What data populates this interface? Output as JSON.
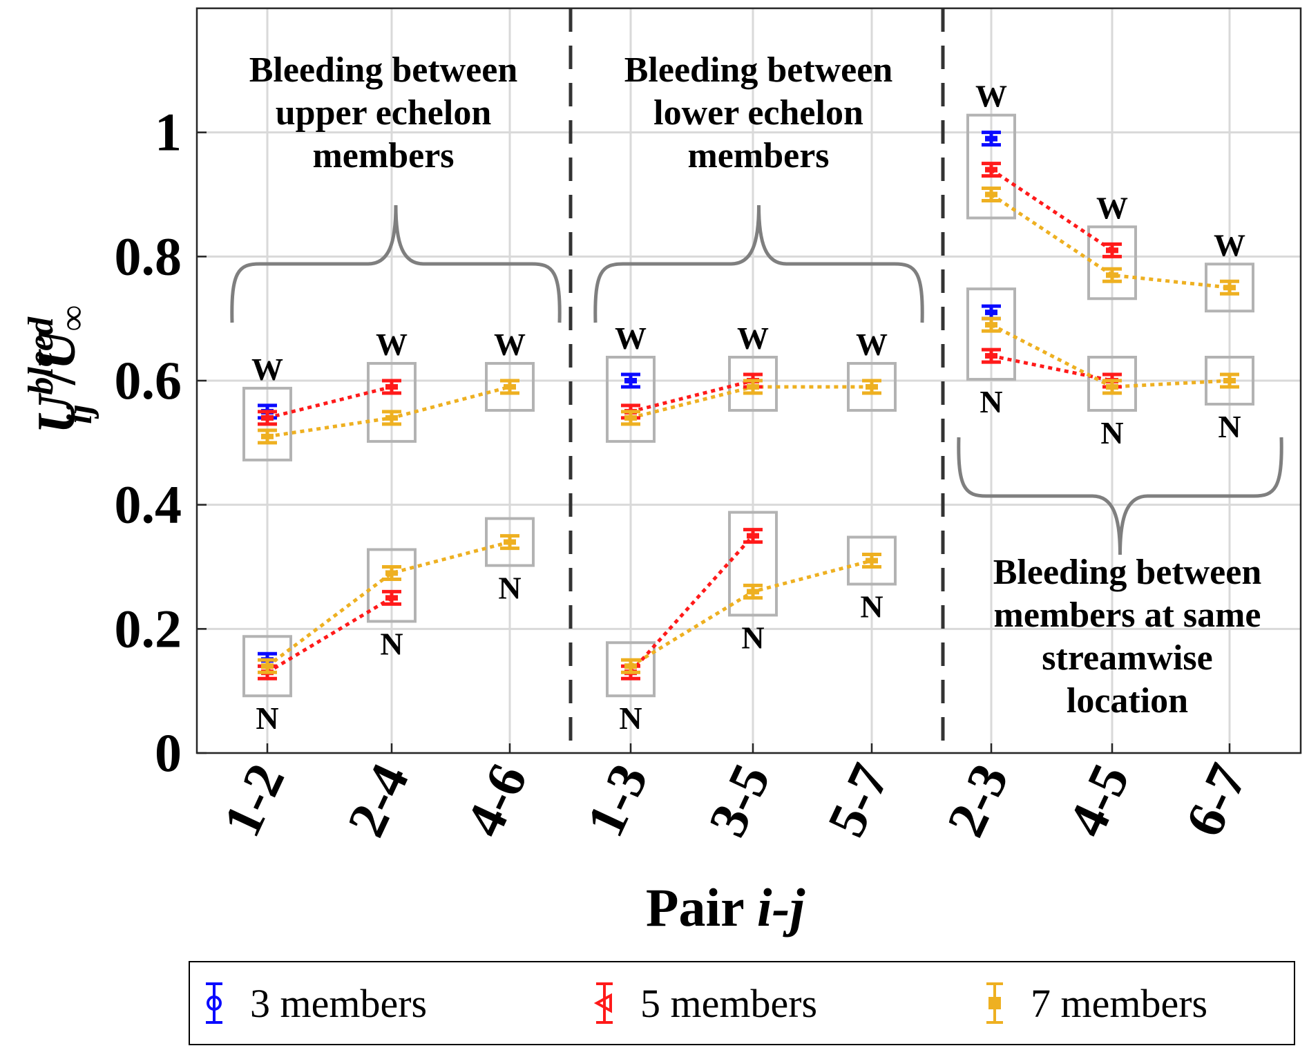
{
  "chart_data": {
    "type": "line",
    "xlabel": "Pair i-j",
    "ylabel": "U_ij^bleed / U_∞",
    "ylim": [
      0,
      1.2
    ],
    "yticks": [
      0,
      0.2,
      0.4,
      0.6,
      0.8,
      1
    ],
    "ytick_labels": [
      "0",
      "0.2",
      "0.4",
      "0.6",
      "0.8",
      "1"
    ],
    "categories": [
      "1-2",
      "2-4",
      "4-6",
      "1-3",
      "3-5",
      "5-7",
      "2-3",
      "4-5",
      "6-7"
    ],
    "group_annotations": [
      "Bleeding between upper echelon members",
      "Bleeding between lower echelon members",
      "Bleeding between members at same streamwise location"
    ],
    "wide_label": "W",
    "narrow_label": "N",
    "series": [
      {
        "name": "3 members",
        "color": "#0a0aff",
        "marker": "o",
        "wide": [
          0.55,
          null,
          null,
          0.6,
          null,
          null,
          0.99,
          null,
          null
        ],
        "narrow": [
          0.15,
          null,
          null,
          null,
          null,
          null,
          0.71,
          null,
          null
        ]
      },
      {
        "name": "5 members",
        "color": "#ff1a1a",
        "marker": "triangle-left",
        "wide": [
          0.54,
          0.59,
          null,
          0.55,
          0.6,
          null,
          0.94,
          0.81,
          null
        ],
        "narrow": [
          0.13,
          0.25,
          null,
          0.13,
          0.35,
          null,
          0.64,
          0.6,
          null
        ]
      },
      {
        "name": "7 members",
        "color": "#eeb021",
        "marker": "square",
        "wide": [
          0.51,
          0.54,
          0.59,
          0.54,
          0.59,
          0.59,
          0.9,
          0.77,
          0.75
        ],
        "narrow": [
          0.14,
          0.29,
          0.34,
          0.14,
          0.26,
          0.31,
          0.69,
          0.59,
          0.6
        ]
      }
    ]
  }
}
